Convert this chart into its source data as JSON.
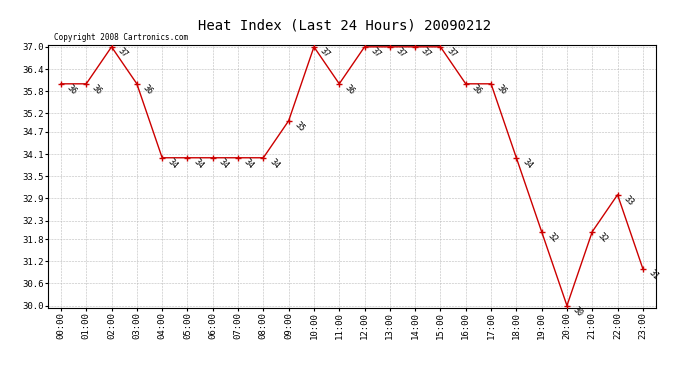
{
  "title": "Heat Index (Last 24 Hours) 20090212",
  "copyright": "Copyright 2008 Cartronics.com",
  "hours": [
    "00:00",
    "01:00",
    "02:00",
    "03:00",
    "04:00",
    "05:00",
    "06:00",
    "07:00",
    "08:00",
    "09:00",
    "10:00",
    "11:00",
    "12:00",
    "13:00",
    "14:00",
    "15:00",
    "16:00",
    "17:00",
    "18:00",
    "19:00",
    "20:00",
    "21:00",
    "22:00",
    "23:00"
  ],
  "values": [
    36,
    36,
    37,
    36,
    34,
    34,
    34,
    34,
    34,
    35,
    37,
    36,
    37,
    37,
    37,
    37,
    36,
    36,
    34,
    32,
    30,
    32,
    33,
    31
  ],
  "line_color": "#cc0000",
  "marker_color": "#cc0000",
  "background_color": "#ffffff",
  "grid_color": "#bbbbbb",
  "ylim_min": 30.0,
  "ylim_max": 37.0,
  "yticks": [
    30.0,
    30.6,
    31.2,
    31.8,
    32.3,
    32.9,
    33.5,
    34.1,
    34.7,
    35.2,
    35.8,
    36.4,
    37.0
  ],
  "title_fontsize": 10,
  "tick_fontsize": 6.5,
  "label_fontsize": 6,
  "copyright_fontsize": 5.5
}
